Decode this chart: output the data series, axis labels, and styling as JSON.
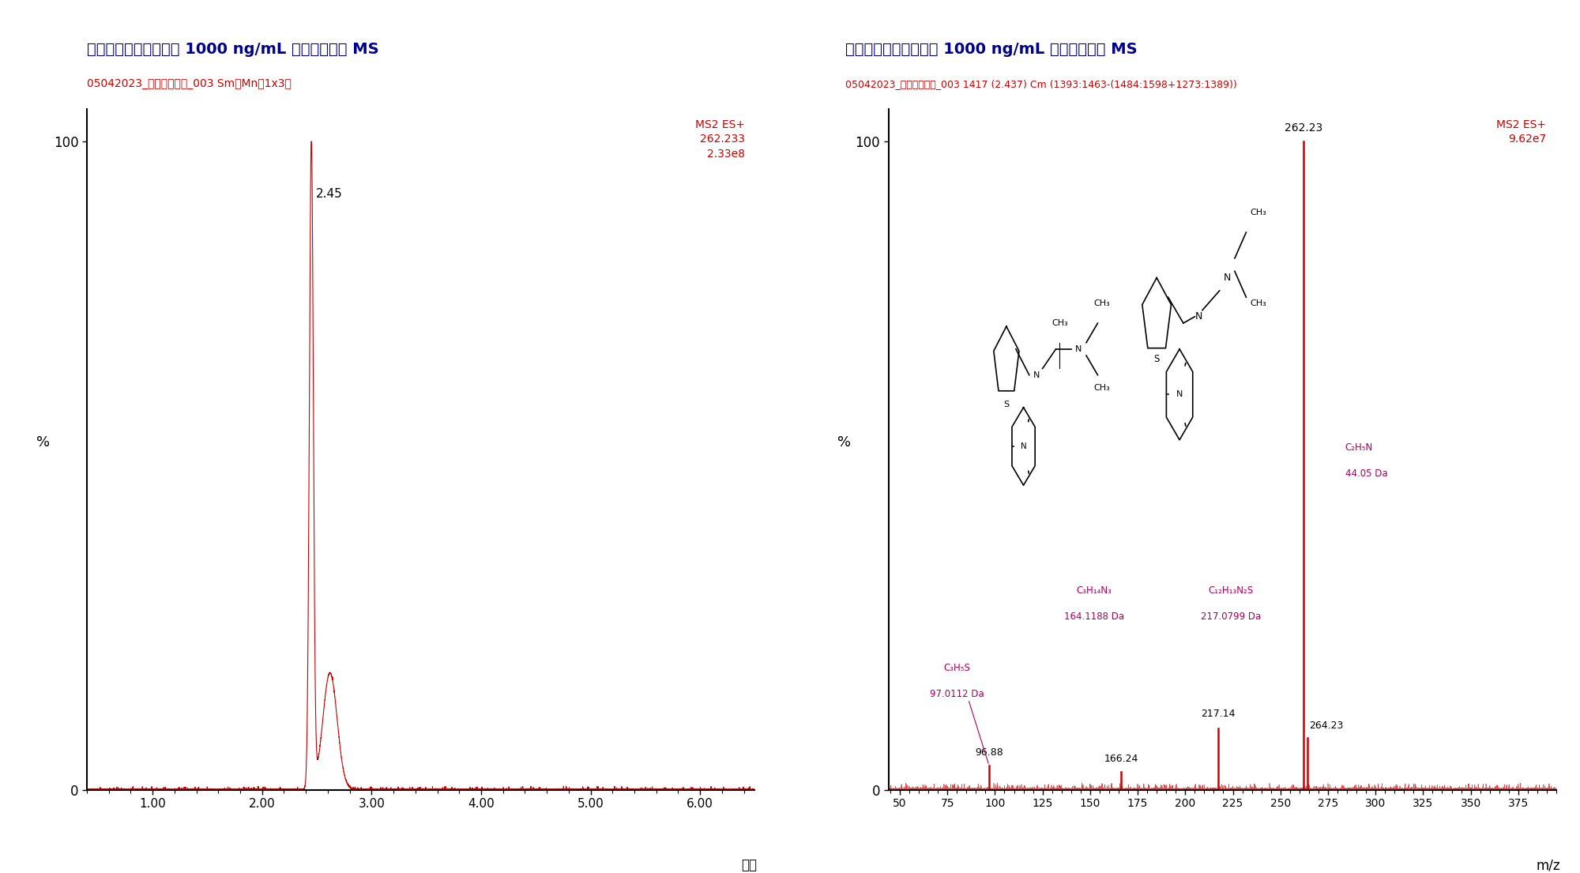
{
  "left_title": "メタピリレン標準試料 1000 ng/mL フルスキャン MS",
  "left_subtitle": "05042023_メタピリレン_003 Sm（Mn、1x3）",
  "left_top_right_line1": "MS2 ES+",
  "left_top_right_line2": "262.233",
  "left_top_right_line3": "2.33e8",
  "right_title": "メタピリレン標準試料 1000 ng/mL フルスキャン MS",
  "right_subtitle": "05042023_メタピリレン_003 1417 (2.437) Cm (1393:1463-(1484:1598+1273:1389))",
  "right_top_right_line1": "MS2 ES+",
  "right_top_right_line2": "9.62e7",
  "left_xlabel": "時間",
  "right_xlabel": "m/z",
  "ylabel": "%",
  "title_color": "#00008B",
  "subtitle_color": "#CC0000",
  "line_color": "#CC0000",
  "text_color_red": "#AA0055",
  "annotation_color": "#AA0055",
  "left_xlim": [
    0.4,
    6.5
  ],
  "left_xticks": [
    1.0,
    2.0,
    3.0,
    4.0,
    5.0,
    6.0
  ],
  "left_xtick_labels": [
    "1.00",
    "2.00",
    "3.00",
    "4.00",
    "5.00",
    "6.00"
  ],
  "left_ylim": [
    0,
    105
  ],
  "right_xlim": [
    44,
    395
  ],
  "right_xticks": [
    50,
    75,
    100,
    125,
    150,
    175,
    200,
    225,
    250,
    275,
    300,
    325,
    350,
    375
  ],
  "right_ylim": [
    0,
    105
  ],
  "peak_label_lc": "2.45",
  "ms_peaks": [
    {
      "mz": 96.88,
      "intensity": 3.8,
      "label": "96.88"
    },
    {
      "mz": 166.24,
      "intensity": 2.8,
      "label": "166.24"
    },
    {
      "mz": 217.14,
      "intensity": 9.5,
      "label": "217.14"
    },
    {
      "mz": 262.23,
      "intensity": 100.0,
      "label": "262.23"
    },
    {
      "mz": 264.23,
      "intensity": 8.0,
      "label": "264.23"
    }
  ]
}
